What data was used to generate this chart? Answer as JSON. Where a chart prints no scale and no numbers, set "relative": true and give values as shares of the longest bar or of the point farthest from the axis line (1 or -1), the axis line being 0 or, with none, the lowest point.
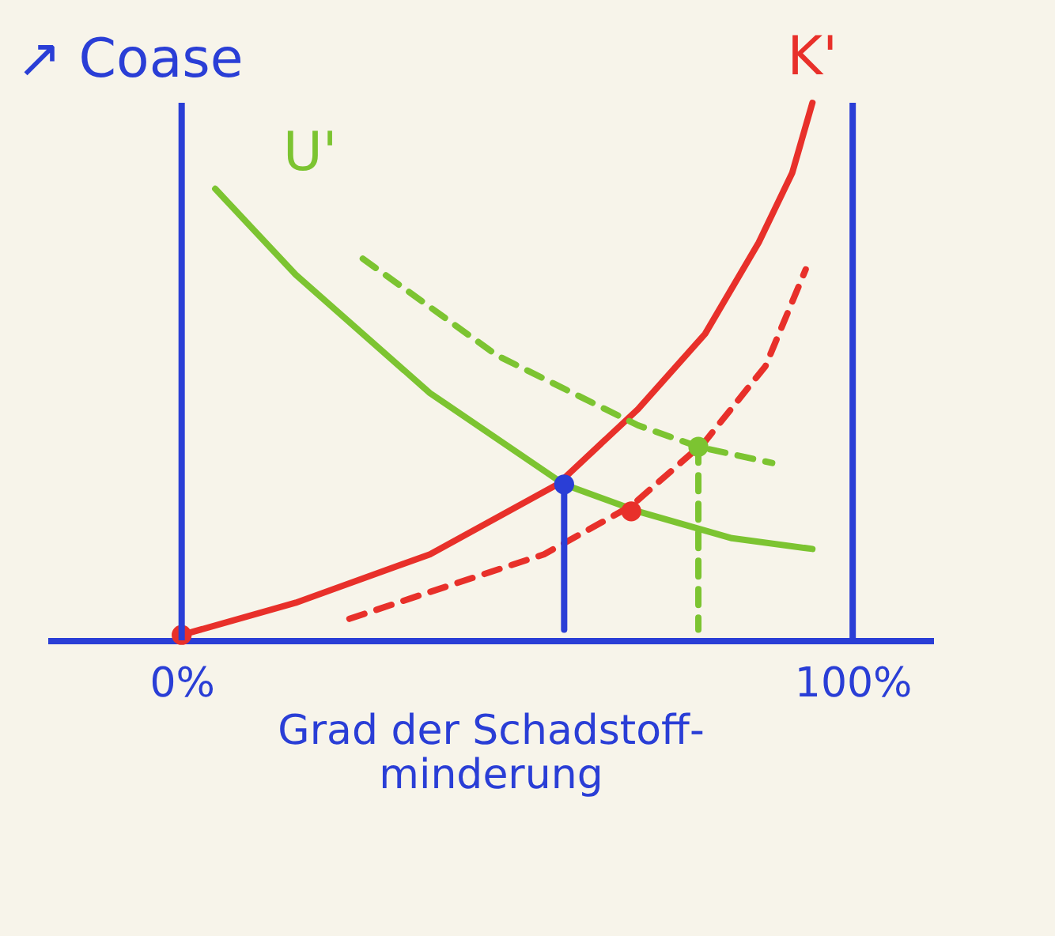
{
  "chart_data": {
    "type": "line",
    "relative": true,
    "ylabel": "↗ Coase",
    "xlabel": "Grad der Schadstoff-minderung",
    "xlim": [
      -20,
      112
    ],
    "xticks": [
      {
        "value": 0,
        "label": "0%"
      },
      {
        "value": 100,
        "label": "100%"
      }
    ],
    "series": [
      {
        "name": "K'",
        "color": "#e8302a",
        "x": [
          0,
          17,
          37,
          56,
          68,
          78,
          86,
          91,
          94
        ],
        "values": [
          0.01,
          0.07,
          0.16,
          0.29,
          0.43,
          0.57,
          0.74,
          0.87,
          1
        ]
      },
      {
        "name": "U'",
        "color": "#7cc431",
        "x": [
          5,
          17,
          37,
          57,
          68,
          82,
          94
        ],
        "values": [
          0.84,
          0.68,
          0.46,
          0.29,
          0.24,
          0.19,
          0.17
        ]
      },
      {
        "color": "#7cc431",
        "line_style": "dashed",
        "x": [
          27,
          47,
          68,
          77,
          88
        ],
        "values": [
          0.71,
          0.53,
          0.4,
          0.36,
          0.33
        ]
      },
      {
        "color": "#e8302a",
        "line_style": "dashed",
        "x": [
          25,
          37,
          54,
          67,
          78,
          87,
          93
        ],
        "values": [
          0.04,
          0.09,
          0.16,
          0.25,
          0.37,
          0.51,
          0.69
        ]
      },
      {
        "color": "#2a3ed6",
        "x": [
          57,
          57
        ],
        "values": [
          0.29,
          0.02
        ]
      },
      {
        "color": "#7cc431",
        "line_style": "dashed",
        "x": [
          77,
          77
        ],
        "values": [
          0.36,
          0.02
        ]
      },
      {
        "type": "scatter",
        "marker": "circle",
        "colors": [
          "#e8302a",
          "#2a3ed6",
          "#e8302a",
          "#7cc431"
        ],
        "x": [
          0,
          57,
          67,
          77
        ],
        "values": [
          0.01,
          0.29,
          0.24,
          0.36
        ]
      }
    ],
    "ref_lines": [
      {
        "axis": "x",
        "value": 0,
        "color": "#2a3ed6"
      },
      {
        "axis": "x",
        "value": 100,
        "color": "#2a3ed6"
      }
    ]
  }
}
